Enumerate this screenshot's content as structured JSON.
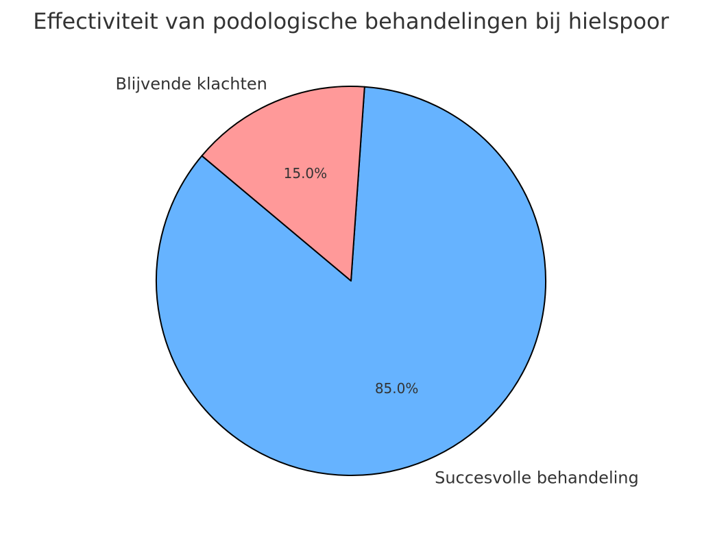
{
  "chart_data": {
    "type": "pie",
    "title": "Effectiviteit van podologische behandelingen bij hielspoor",
    "categories": [
      "Succesvolle behandeling",
      "Blijvende klachten"
    ],
    "values": [
      85.0,
      15.0
    ],
    "value_labels": [
      "85.0%",
      "15.0%"
    ],
    "colors": [
      "#66b3ff",
      "#ff9999"
    ],
    "start_angle_deg": 140,
    "legend": "none"
  }
}
